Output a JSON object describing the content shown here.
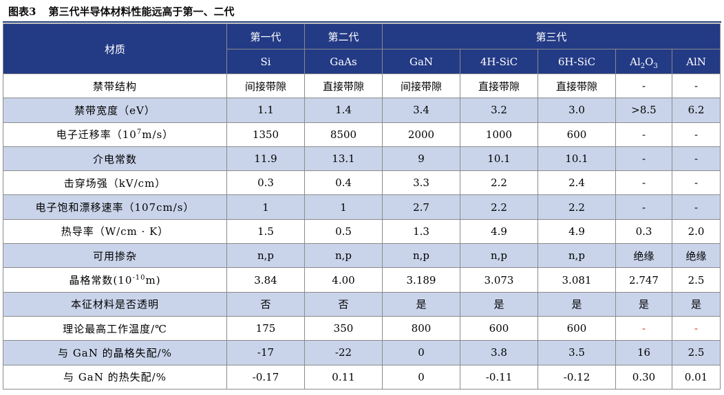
{
  "figure": {
    "number": "图表3",
    "title": "第三代半导体材料性能远高于第一、二代"
  },
  "header": {
    "material": "材质",
    "gen1": "第一代",
    "gen2": "第二代",
    "gen3": "第三代",
    "columns": [
      "Si",
      "GaAs",
      "GaN",
      "4H-SiC",
      "6H-SiC",
      "Al2O3",
      "AlN"
    ]
  },
  "rows": [
    {
      "label": "禁带结构",
      "values": [
        "间接带隙",
        "直接带隙",
        "间接带隙",
        "直接带隙",
        "直接带隙",
        "-",
        "-"
      ]
    },
    {
      "label": "禁带宽度（eV）",
      "values": [
        "1.1",
        "1.4",
        "3.4",
        "3.2",
        "3.0",
        ">8.5",
        "6.2"
      ]
    },
    {
      "label": "电子迁移率（107m/s）",
      "values": [
        "1350",
        "8500",
        "2000",
        "1000",
        "600",
        "-",
        "-"
      ]
    },
    {
      "label": "介电常数",
      "values": [
        "11.9",
        "13.1",
        "9",
        "10.1",
        "10.1",
        "-",
        "-"
      ]
    },
    {
      "label": "击穿场强（kV/cm）",
      "values": [
        "0.3",
        "0.4",
        "3.3",
        "2.2",
        "2.4",
        "-",
        "-"
      ]
    },
    {
      "label": "电子饱和漂移速率（107cm/s）",
      "values": [
        "1",
        "1",
        "2.7",
        "2.2",
        "2.2",
        "-",
        "-"
      ]
    },
    {
      "label": "热导率（W/cm · K）",
      "values": [
        "1.5",
        "0.5",
        "1.3",
        "4.9",
        "4.9",
        "0.3",
        "2.0"
      ]
    },
    {
      "label": "可用掺杂",
      "values": [
        "n,p",
        "n,p",
        "n,p",
        "n,p",
        "n,p",
        "绝缘",
        "绝缘"
      ]
    },
    {
      "label": "晶格常数(10-10m)",
      "values": [
        "3.84",
        "4.00",
        "3.189",
        "3.073",
        "3.081",
        "2.747",
        "2.5"
      ]
    },
    {
      "label": "本征材料是否透明",
      "values": [
        "否",
        "否",
        "是",
        "是",
        "是",
        "是",
        "是"
      ]
    },
    {
      "label": "理论最高工作温度/℃",
      "values": [
        "175",
        "350",
        "800",
        "600",
        "600",
        "-",
        "-"
      ]
    },
    {
      "label": "与 GaN 的晶格失配/%",
      "values": [
        "-17",
        "-22",
        "0",
        "3.8",
        "3.5",
        "16",
        "2.5"
      ]
    },
    {
      "label": "与 GaN 的热失配/%",
      "values": [
        "-0.17",
        "0.11",
        "0",
        "-0.11",
        "-0.12",
        "0.30",
        "0.01"
      ]
    }
  ],
  "colors": {
    "header_bg": "#233a85",
    "stripe_bg": "#c9d4ea",
    "accent_red": "#d9302a"
  }
}
